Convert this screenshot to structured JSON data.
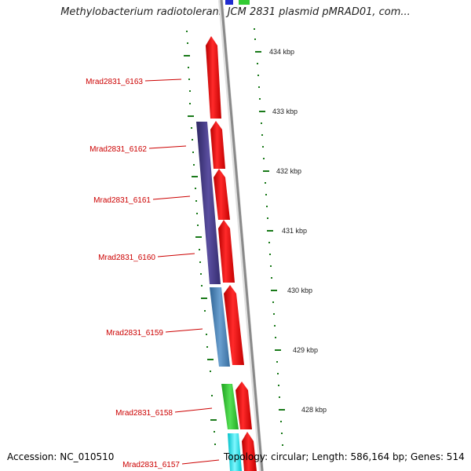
{
  "title": "Methylobacterium radiotolerans JCM 2831 plasmid pMRAD01, com...",
  "footer": {
    "accession": "Accession: NC_010510",
    "summary": "Topology: circular; Length: 586,164 bp; Genes: 514"
  },
  "scale_ticks": [
    "434 kbp",
    "433 kbp",
    "432 kbp",
    "431 kbp",
    "430 kbp",
    "429 kbp",
    "428 kbp"
  ],
  "genes": [
    {
      "label": "Mrad2831_6163"
    },
    {
      "label": "Mrad2831_6162"
    },
    {
      "label": "Mrad2831_6161"
    },
    {
      "label": "Mrad2831_6160"
    },
    {
      "label": "Mrad2831_6159"
    },
    {
      "label": "Mrad2831_6158"
    },
    {
      "label": "Mrad2831_6157"
    }
  ],
  "colors": {
    "gene_arrow": "#ff0000",
    "cog_purple": "#4b3f8c",
    "cog_blue": "#4f86b8",
    "cog_green": "#33cc33",
    "cog_cyan": "#00e5ee",
    "axis_gray": "#888888",
    "tick_green": "#1a7a1a",
    "label_red": "#cc0000"
  }
}
